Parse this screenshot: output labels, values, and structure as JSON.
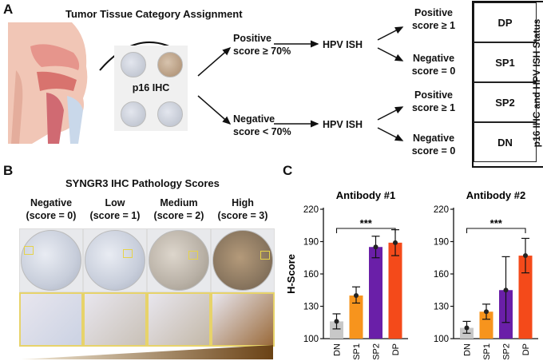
{
  "panel_a": {
    "letter": "A",
    "title": "Tumor Tissue Category Assignment",
    "p16_label": "p16 IHC",
    "positive_branch": [
      "Positive",
      "score ≥ 70%"
    ],
    "negative_branch": [
      "Negative",
      "score < 70%"
    ],
    "hpv_ish": "HPV ISH",
    "pos_pos": [
      "Positive",
      "score ≥ 1"
    ],
    "pos_neg": [
      "Negative",
      "score = 0"
    ],
    "neg_pos": [
      "Positive",
      "score ≥ 1"
    ],
    "neg_neg": [
      "Negative",
      "score = 0"
    ],
    "status_title": "p16 IHC and HPV ISH Status",
    "status_boxes": [
      {
        "label": "DP",
        "color": "#ee2a2a"
      },
      {
        "label": "SP1",
        "color": "#f7941d"
      },
      {
        "label": "SP2",
        "color": "#7b3fa0"
      },
      {
        "label": "DN",
        "color": "#c8c8c8"
      }
    ]
  },
  "panel_b": {
    "letter": "B",
    "title": "SYNGR3 IHC Pathology Scores",
    "columns": [
      {
        "name": "Negative",
        "score": "(score = 0)"
      },
      {
        "name": "Low",
        "score": "(score = 1)"
      },
      {
        "name": "Medium",
        "score": "(score = 2)"
      },
      {
        "name": "High",
        "score": "(score = 3)"
      }
    ]
  },
  "panel_c": {
    "letter": "C",
    "chart_data": [
      {
        "type": "bar",
        "title": "Antibody #1",
        "ylabel": "H-Score",
        "xlabel": "",
        "categories": [
          "DN",
          "SP1",
          "SP2",
          "DP"
        ],
        "values": [
          116,
          140,
          185,
          189
        ],
        "error_low": [
          109,
          133,
          175,
          177
        ],
        "error_high": [
          123,
          148,
          195,
          201
        ],
        "colors": [
          "#c8c8c8",
          "#f7941d",
          "#6a1fa8",
          "#f44a1a"
        ],
        "ylim": [
          100,
          220
        ],
        "yticks": [
          100,
          130,
          160,
          190,
          220
        ],
        "annotation": "***",
        "grid": false
      },
      {
        "type": "bar",
        "title": "Antibody #2",
        "ylabel": "",
        "xlabel": "",
        "categories": [
          "DN",
          "SP1",
          "SP2",
          "DP"
        ],
        "values": [
          110,
          125,
          145,
          177
        ],
        "error_low": [
          105,
          118,
          115,
          161
        ],
        "error_high": [
          116,
          132,
          176,
          193
        ],
        "colors": [
          "#c8c8c8",
          "#f7941d",
          "#6a1fa8",
          "#f44a1a"
        ],
        "ylim": [
          100,
          220
        ],
        "yticks": [
          100,
          130,
          160,
          190,
          220
        ],
        "annotation": "***",
        "grid": false
      }
    ]
  }
}
